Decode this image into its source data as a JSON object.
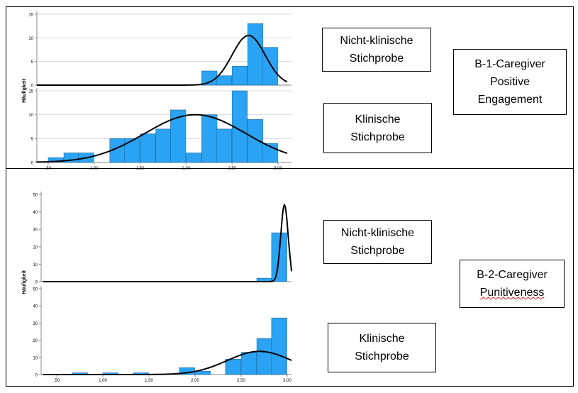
{
  "colors": {
    "bar_fill": "#2aa3f4",
    "bar_stroke": "#1b5c8a",
    "curve": "#000000",
    "grid": "#d8d8d8"
  },
  "panels": {
    "top": {
      "ylabel": "Häufigkeit",
      "side_label": "B-1-Caregiver\nPositive\nEngagement",
      "box_upper": "Nicht-klinische\nStichprobe",
      "box_lower": "Klinische\nStichprobe"
    },
    "bottom": {
      "ylabel": "Häufigkeit",
      "side_label_line1": "B-2-Caregiver",
      "side_label_line2": "Punitiveness",
      "box_upper": "Nicht-klinische\nStichprobe",
      "box_lower": "Klinische\nStichprobe"
    }
  },
  "chart_data": [
    {
      "type": "bar",
      "subtitle": "Nicht-klinische Stichprobe",
      "panel": "B-1-Caregiver Positive Engagement",
      "ylabel": "Häufigkeit",
      "ylim": [
        0,
        15
      ],
      "yticks": [
        "0",
        "5",
        "10",
        "15"
      ],
      "xlim": [
        0.35,
        3.1
      ],
      "bin_width": 0.1667,
      "bin_starts": [
        2.17,
        2.33,
        2.5,
        2.67,
        2.83
      ],
      "values": [
        3,
        2,
        4,
        13,
        8
      ],
      "curve": {
        "mean": 2.68,
        "sd": 0.18,
        "peak": 10.5
      },
      "grid": true
    },
    {
      "type": "bar",
      "subtitle": "Klinische Stichprobe",
      "panel": "B-1-Caregiver Positive Engagement",
      "ylabel": "Häufigkeit",
      "ylim": [
        0,
        15
      ],
      "yticks": [
        "0",
        "5",
        "10",
        "15"
      ],
      "xticks": [
        ",50",
        "1,00",
        "1,50",
        "2,00",
        "2,50",
        "3,00"
      ],
      "xtick_values": [
        0.5,
        1.0,
        1.5,
        2.0,
        2.5,
        3.0
      ],
      "xlim": [
        0.35,
        3.1
      ],
      "bin_width": 0.1667,
      "bin_starts": [
        0.5,
        0.67,
        0.83,
        1.17,
        1.33,
        1.5,
        1.67,
        1.83,
        2.0,
        2.17,
        2.33,
        2.5,
        2.67,
        2.83
      ],
      "values": [
        1,
        2,
        2,
        5,
        5,
        6,
        7,
        11,
        2,
        10,
        7,
        15,
        9,
        4
      ],
      "curve": {
        "mean": 2.1,
        "sd": 0.55,
        "peak": 10
      },
      "grid": true
    },
    {
      "type": "bar",
      "subtitle": "Nicht-klinische Stichprobe",
      "panel": "B-2-Caregiver Punitiveness",
      "ylabel": "Häufigkeit",
      "ylim": [
        0,
        50
      ],
      "yticks": [
        "0",
        "10",
        "20",
        "30",
        "40",
        "50"
      ],
      "xlim": [
        0.35,
        3.05
      ],
      "bin_width": 0.1667,
      "bin_starts": [
        2.67,
        2.83
      ],
      "values": [
        2,
        28
      ],
      "curve": {
        "mean": 2.97,
        "sd": 0.04,
        "peak": 44
      },
      "grid": false
    },
    {
      "type": "bar",
      "subtitle": "Klinische Stichprobe",
      "panel": "B-2-Caregiver Punitiveness",
      "ylabel": "Häufigkeit",
      "ylim": [
        0,
        50
      ],
      "yticks": [
        "0",
        "10",
        "20",
        "30",
        "40",
        "50"
      ],
      "xticks": [
        ",50",
        "1,00",
        "1,50",
        "2,00",
        "2,50",
        "3,00"
      ],
      "xtick_values": [
        0.5,
        1.0,
        1.5,
        2.0,
        2.5,
        3.0
      ],
      "xlim": [
        0.35,
        3.05
      ],
      "bin_width": 0.1667,
      "bin_starts": [
        0.67,
        1.0,
        1.33,
        1.83,
        2.0,
        2.33,
        2.5,
        2.67,
        2.83
      ],
      "values": [
        1,
        1,
        1,
        4,
        2,
        9,
        13,
        21,
        33
      ],
      "curve": {
        "mean": 2.7,
        "sd": 0.35,
        "peak": 13.5
      },
      "grid": false
    }
  ]
}
